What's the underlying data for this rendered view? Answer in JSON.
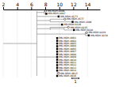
{
  "chart_data": {
    "type": "dendrogram",
    "color": "#999999",
    "xlim": [
      2,
      15.8
    ],
    "xticks": [
      2,
      4,
      6,
      8,
      10,
      12,
      14
    ],
    "grid": true,
    "nodes": [
      {
        "x": 6.8,
        "from": 2.0,
        "span": [
          0,
          24
        ]
      },
      {
        "x": 7.85,
        "from": 6.8,
        "span": [
          0,
          1
        ]
      },
      {
        "x": 8.7,
        "from": 6.8,
        "span": [
          3,
          4
        ]
      },
      {
        "x": 8.7,
        "from": 6.8,
        "span": [
          6,
          7
        ]
      },
      {
        "x": 10.7,
        "from": 8.7,
        "span": [
          6,
          7
        ]
      },
      {
        "x": 13.7,
        "from": 6.8,
        "span": [
          8,
          9
        ]
      },
      {
        "x": 9.7,
        "from": 6.8,
        "span": [
          10,
          24
        ]
      }
    ],
    "leaves": [
      {
        "label": "MN-MDH-0006",
        "x": 8.05,
        "from": 7.85,
        "marker": "circle"
      },
      {
        "label": "MN-MDH-1087",
        "x": 8.15,
        "from": 7.85,
        "marker": "square"
      },
      {
        "label": "MN-MDH-0173",
        "x": 9.9,
        "from": 6.8,
        "marker": "square"
      },
      {
        "label": "MN-MDH-0577",
        "x": 10.8,
        "from": 8.7,
        "marker": "circle"
      },
      {
        "label": "MN-MDH-1086",
        "x": 11.9,
        "from": 8.7,
        "marker": "square"
      },
      {
        "label": "MN-MDH-0226",
        "x": 10.4,
        "from": 6.8,
        "marker": "square"
      },
      {
        "label": "MN-MDH-0225",
        "x": 11.3,
        "from": 8.7,
        "marker": "circle"
      },
      {
        "label": "MN-MDH-0228",
        "x": 12.1,
        "from": 10.7,
        "marker": "square"
      },
      {
        "label": "MN-MDH-0229",
        "x": 13.9,
        "from": 13.7,
        "marker": "circle"
      },
      {
        "label": "MN-MDH-0230",
        "x": 14.2,
        "from": 13.7,
        "marker": "square"
      },
      {
        "label": "MN-MDH-0001",
        "x": 9.7,
        "from": 9.7,
        "marker": "square"
      },
      {
        "label": "MN-MDH-0002",
        "x": 9.7,
        "from": 9.7,
        "marker": "square"
      },
      {
        "label": "MN-MDH-0003",
        "x": 9.7,
        "from": 9.7,
        "marker": "square"
      },
      {
        "label": "MN-MDH-0004",
        "x": 9.7,
        "from": 9.7,
        "marker": "square"
      },
      {
        "label": "MN-MDH-0005",
        "x": 9.7,
        "from": 9.7,
        "marker": "square"
      },
      {
        "label": "MN-MDH-0007",
        "x": 9.7,
        "from": 9.7,
        "marker": "square"
      },
      {
        "label": "MN-MDH-0008",
        "x": 9.7,
        "from": 9.7,
        "marker": "square"
      },
      {
        "label": "MN-MDH-0009",
        "x": 9.7,
        "from": 9.7,
        "marker": "square"
      },
      {
        "label": "MN-MDH-0010",
        "x": 9.7,
        "from": 9.7,
        "marker": "square"
      },
      {
        "label": "MN-MDH-0011",
        "x": 9.7,
        "from": 9.7,
        "marker": "square"
      },
      {
        "label": "MN-MDH-0012",
        "x": 9.7,
        "from": 9.7,
        "marker": "square"
      },
      {
        "label": "MN-MDH-0013",
        "x": 9.7,
        "from": 9.7,
        "marker": "square"
      },
      {
        "label": "MN-MDH-0014",
        "x": 9.7,
        "from": 9.7,
        "marker": "square"
      },
      {
        "label": "MN-MDH-0015",
        "x": 9.9,
        "from": 9.7,
        "marker": "circle"
      },
      {
        "label": "MN-MDH-0016",
        "x": 9.7,
        "from": 9.7,
        "marker": "square"
      }
    ],
    "scale_bar": {
      "x": [
        11.8,
        12.8
      ],
      "label": "1"
    }
  }
}
